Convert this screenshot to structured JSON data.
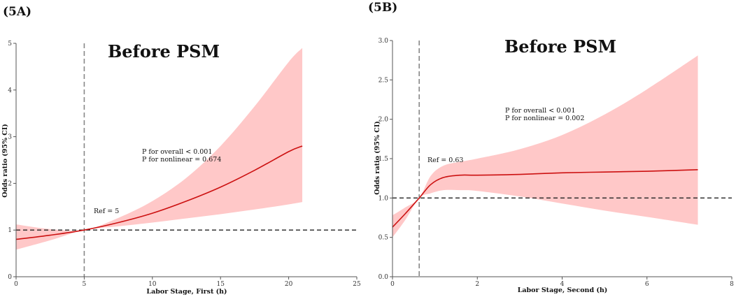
{
  "figure": {
    "panel_labels": [
      "(5A)",
      "(5B)"
    ]
  },
  "chart_data": [
    {
      "type": "line",
      "panel": "(5A)",
      "title": "Before  PSM",
      "xlabel": "Labor Stage, First (h)",
      "ylabel": "Odds ratio (95% CI)",
      "xlim": [
        0,
        25
      ],
      "ylim": [
        0,
        5
      ],
      "xticks": [
        "0",
        "5",
        "10",
        "15",
        "20",
        "25"
      ],
      "yticks": [
        "0",
        "1",
        "2",
        "3",
        "4",
        "5"
      ],
      "ref_x": 5,
      "ref_y": 1,
      "ref_label": "Ref = 5",
      "annotations": [
        "P for overall < 0.001",
        "P for nonlinear = 0.674"
      ],
      "series": [
        {
          "name": "OR",
          "x": [
            0,
            2.5,
            5,
            7.5,
            10,
            12.5,
            15,
            17.5,
            20,
            21
          ],
          "y": [
            0.8,
            0.89,
            1.0,
            1.16,
            1.36,
            1.62,
            1.92,
            2.28,
            2.68,
            2.8
          ],
          "lower": [
            0.58,
            0.78,
            1.0,
            1.08,
            1.16,
            1.25,
            1.34,
            1.44,
            1.55,
            1.6
          ],
          "upper": [
            1.12,
            1.02,
            1.0,
            1.26,
            1.62,
            2.12,
            2.8,
            3.65,
            4.6,
            4.9
          ]
        }
      ],
      "colors": {
        "line": "#cc1111",
        "band": "#ffc8c8",
        "ref": "#888888"
      }
    },
    {
      "type": "line",
      "panel": "(5B)",
      "title": "Before  PSM",
      "xlabel": "Labor Stage, Second (h)",
      "ylabel": "Odds ratio (95% CI)",
      "xlim": [
        0,
        8
      ],
      "ylim": [
        0,
        3
      ],
      "xticks": [
        "0",
        "2",
        "4",
        "6",
        "8"
      ],
      "yticks": [
        "0.0",
        "0.5",
        "1.0",
        "1.5",
        "2.0",
        "2.5",
        "3.0"
      ],
      "ref_x": 0.63,
      "ref_y": 1,
      "ref_label": "Ref = 0.63",
      "annotations": [
        "P for overall < 0.001",
        "P for nonlinear = 0.002"
      ],
      "series": [
        {
          "name": "OR",
          "x": [
            0,
            0.3,
            0.63,
            0.9,
            1.2,
            1.6,
            2.0,
            3.0,
            4.0,
            5.0,
            6.0,
            7.2
          ],
          "y": [
            0.63,
            0.8,
            1.0,
            1.17,
            1.26,
            1.29,
            1.29,
            1.3,
            1.32,
            1.33,
            1.34,
            1.36
          ],
          "lower": [
            0.5,
            0.72,
            1.0,
            1.06,
            1.1,
            1.1,
            1.09,
            1.02,
            0.93,
            0.84,
            0.76,
            0.66
          ],
          "upper": [
            0.78,
            0.88,
            1.0,
            1.28,
            1.41,
            1.46,
            1.5,
            1.62,
            1.8,
            2.06,
            2.38,
            2.81
          ]
        }
      ],
      "colors": {
        "line": "#cc1111",
        "band": "#ffc8c8",
        "ref": "#888888"
      }
    }
  ]
}
